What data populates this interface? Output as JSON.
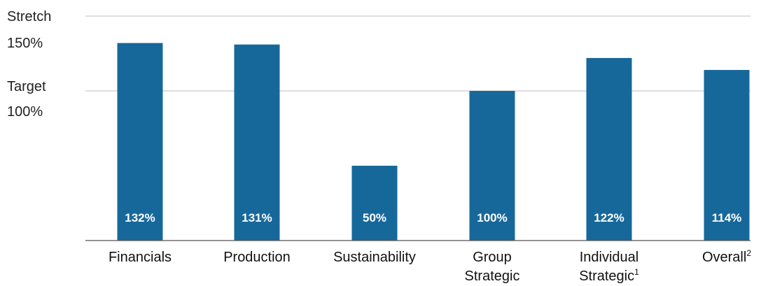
{
  "colors": {
    "bar": "#17689a",
    "grid": "#bdbdbd",
    "baseline": "#555555"
  },
  "y_axis": {
    "stretch_word": "Stretch",
    "stretch_value": "150%",
    "target_word": "Target",
    "target_value": "100%"
  },
  "chart_data": {
    "type": "bar",
    "categories": [
      {
        "line1": "Financials",
        "line2": "",
        "sup": ""
      },
      {
        "line1": "Production",
        "line2": "",
        "sup": ""
      },
      {
        "line1": "Sustainability",
        "line2": "",
        "sup": ""
      },
      {
        "line1": "Group",
        "line2": "Strategic",
        "sup": ""
      },
      {
        "line1": "Individual",
        "line2": "Strategic",
        "sup": "1"
      },
      {
        "line1": "Overall",
        "line2": "",
        "sup": "2"
      }
    ],
    "values": [
      132,
      131,
      50,
      100,
      122,
      114
    ],
    "value_labels": [
      "132%",
      "131%",
      "50%",
      "100%",
      "122%",
      "114%"
    ],
    "reference_lines": [
      {
        "name": "Stretch",
        "value": 150
      },
      {
        "name": "Target",
        "value": 100
      }
    ],
    "ylim": [
      0,
      150
    ],
    "title": "",
    "xlabel": "",
    "ylabel": ""
  }
}
